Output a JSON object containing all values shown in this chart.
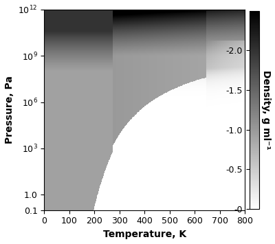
{
  "title": "",
  "xlabel": "Temperature, K",
  "ylabel": "Pressure, Pa",
  "colorbar_label": "Density, g ml⁻¹",
  "T_min": 0,
  "T_max": 800,
  "P_min": 0.1,
  "P_max": 1000000000000.0,
  "density_min": 0.0,
  "density_max": 2.5,
  "colorbar_ticks": [
    0,
    0.5,
    1.0,
    1.5,
    2.0
  ],
  "colorbar_ticklabels": [
    "-0",
    "-0.5",
    "-1.0",
    "-1.5",
    "-2.0"
  ],
  "xlabel_fontsize": 10,
  "ylabel_fontsize": 10,
  "colorbar_fontsize": 10,
  "tick_fontsize": 9,
  "figsize": [
    4.0,
    3.55
  ],
  "dpi": 100,
  "T_crit": 647.0,
  "P_crit": 22000000.0,
  "T_triple": 273.16,
  "P_triple": 611.7
}
